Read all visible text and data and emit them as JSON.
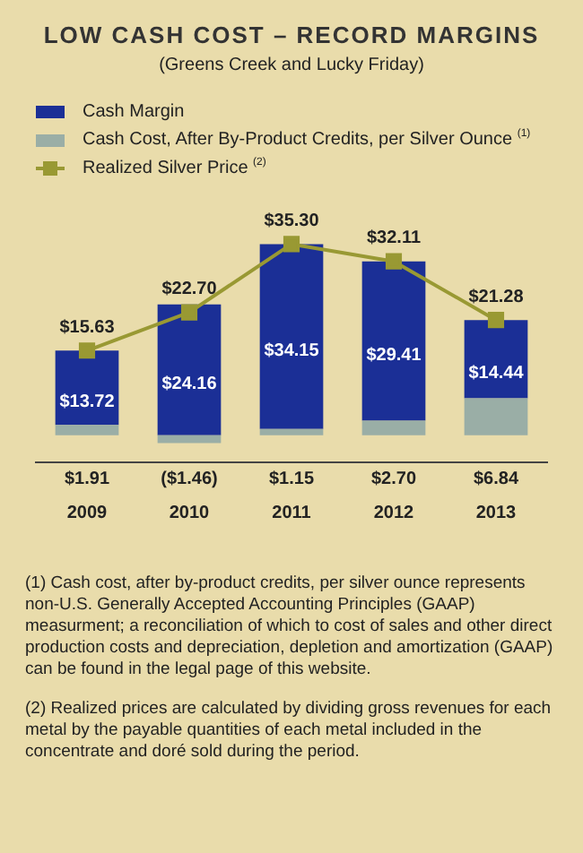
{
  "chart_data": {
    "type": "bar",
    "title": "LOW CASH COST – RECORD MARGINS",
    "subtitle": "(Greens Creek and Lucky Friday)",
    "categories": [
      "2009",
      "2010",
      "2011",
      "2012",
      "2013"
    ],
    "stacked": true,
    "legend": "top left",
    "grid": false,
    "marker": "square",
    "series": [
      {
        "name": "Cash Cost, After By-Product Credits, per Silver Ounce $^{(1)}$",
        "color": "#9aaea6",
        "values": [
          1.91,
          -1.46,
          1.15,
          2.7,
          6.84
        ],
        "value_labels": [
          "$1.91",
          "($1.46)",
          "$1.15",
          "$2.70",
          "$6.84"
        ]
      },
      {
        "name": "Cash Margin",
        "color": "#1b2f96",
        "values": [
          13.72,
          24.16,
          34.15,
          29.41,
          14.44
        ],
        "value_labels": [
          "$13.72",
          "$24.16",
          "$34.15",
          "$29.41",
          "$14.44"
        ]
      },
      {
        "name": "Realized Silver Price $^{(2)}$",
        "type": "line",
        "color": "#999933",
        "values": [
          15.63,
          22.7,
          35.3,
          32.11,
          21.28
        ],
        "value_labels": [
          "$15.63",
          "$22.70",
          "$35.30",
          "$32.11",
          "$21.28"
        ]
      }
    ],
    "annotations": [
      "(1) Cash cost, after by-product credits, per silver ounce represents non-U.S. Generally Accepted Accounting Principles (GAAP) measurment; a reconciliation of which to cost of sales and other direct production costs and depreciation, depletion and amortization (GAAP) can be found in the legal page of this website.",
      "(2) Realized prices are calculated by dividing gross revenues for each metal by the payable quantities of each metal included in the concentrate and doré sold during the period."
    ]
  }
}
